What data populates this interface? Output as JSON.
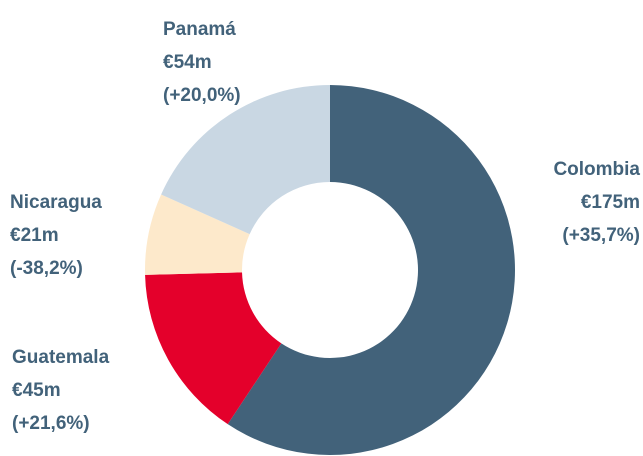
{
  "chart_data": {
    "type": "donut",
    "categories": [
      "Colombia",
      "Guatemala",
      "Nicaragua",
      "Panamá"
    ],
    "values": [
      175,
      45,
      21,
      54
    ],
    "value_labels": [
      "€175m",
      "€45m",
      "€21m",
      "€54m"
    ],
    "changes": [
      "(+35,7%)",
      "(+21,6%)",
      "(-38,2%)",
      "(+20,0%)"
    ],
    "colors": [
      "#42627a",
      "#e4002b",
      "#fde9cb",
      "#c9d7e3"
    ]
  }
}
